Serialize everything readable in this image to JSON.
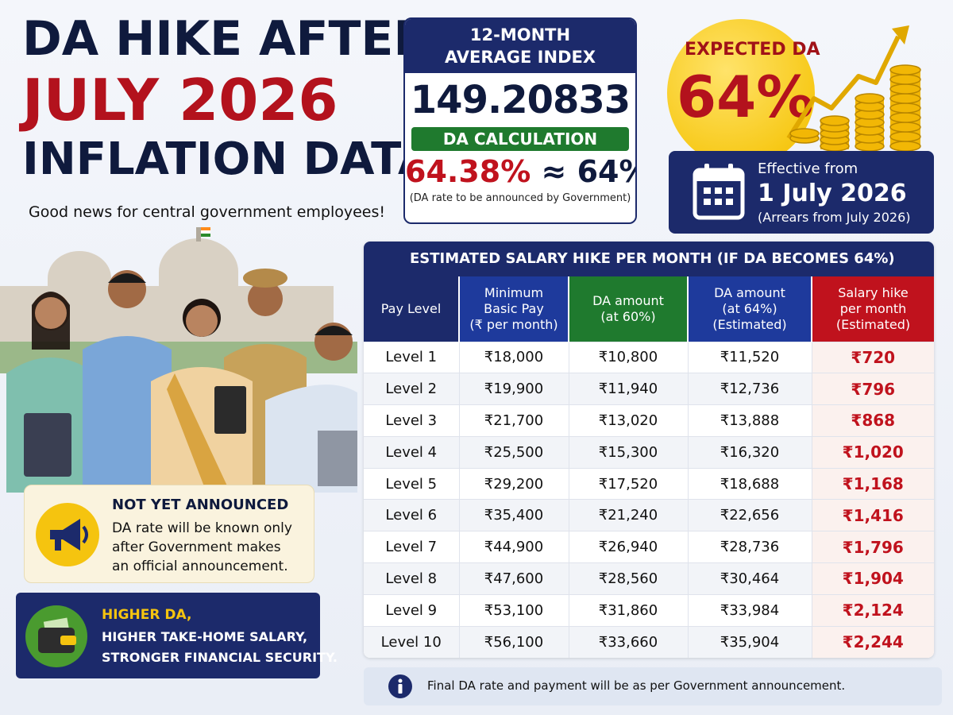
{
  "headline": {
    "line1": "DA HIKE AFTER",
    "line2": "JULY 2026",
    "line3": "INFLATION DATA"
  },
  "subtitle": "Good news for central government employees!",
  "index_card": {
    "heading_line1": "12-MONTH",
    "heading_line2": "AVERAGE INDEX",
    "value": "149.20833",
    "calc_label": "DA CALCULATION",
    "calc_exact": "64.38%",
    "calc_approx": "≈ 64%",
    "note": "(DA rate to be announced by Government)"
  },
  "expected": {
    "label": "EXPECTED DA",
    "value": "64%"
  },
  "effective": {
    "label": "Effective from",
    "date": "1 July 2026",
    "arrears": "(Arrears from July 2026)"
  },
  "notice": {
    "title": "NOT YET ANNOUNCED",
    "line1": "DA rate will be known only",
    "line2": "after Government makes",
    "line3": "an official announcement."
  },
  "benefit": {
    "line1": "HIGHER DA,",
    "line2": "HIGHER TAKE-HOME SALARY,",
    "line3": "STRONGER FINANCIAL SECURITY."
  },
  "table": {
    "title": "ESTIMATED SALARY HIKE PER MONTH (IF DA BECOMES 64%)",
    "headers": [
      {
        "l1": "Pay Level",
        "l2": "",
        "l3": ""
      },
      {
        "l1": "Minimum",
        "l2": "Basic Pay",
        "l3": "(₹ per month)"
      },
      {
        "l1": "DA amount",
        "l2": "(at 60%)",
        "l3": ""
      },
      {
        "l1": "DA amount",
        "l2": "(at 64%)",
        "l3": "(Estimated)"
      },
      {
        "l1": "Salary hike",
        "l2": "per month",
        "l3": "(Estimated)"
      }
    ],
    "rows": [
      [
        "Level 1",
        "₹18,000",
        "₹10,800",
        "₹11,520",
        "₹720"
      ],
      [
        "Level 2",
        "₹19,900",
        "₹11,940",
        "₹12,736",
        "₹796"
      ],
      [
        "Level 3",
        "₹21,700",
        "₹13,020",
        "₹13,888",
        "₹868"
      ],
      [
        "Level 4",
        "₹25,500",
        "₹15,300",
        "₹16,320",
        "₹1,020"
      ],
      [
        "Level 5",
        "₹29,200",
        "₹17,520",
        "₹18,688",
        "₹1,168"
      ],
      [
        "Level 6",
        "₹35,400",
        "₹21,240",
        "₹22,656",
        "₹1,416"
      ],
      [
        "Level 7",
        "₹44,900",
        "₹26,940",
        "₹28,736",
        "₹1,796"
      ],
      [
        "Level 8",
        "₹47,600",
        "₹28,560",
        "₹30,464",
        "₹1,904"
      ],
      [
        "Level 9",
        "₹53,100",
        "₹31,860",
        "₹33,984",
        "₹2,124"
      ],
      [
        "Level 10",
        "₹56,100",
        "₹33,660",
        "₹35,904",
        "₹2,244"
      ]
    ]
  },
  "footnote": "Final DA rate and payment will be as per Government announcement.",
  "colors": {
    "navy": "#1c2a6b",
    "red": "#c0121d",
    "green": "#1f7a2e",
    "blue": "#1e3a9c",
    "gold": "#f5c40f"
  },
  "icons": [
    "calendar-icon",
    "megaphone-icon",
    "wallet-icon",
    "info-icon",
    "coins-icon",
    "trend-arrow-icon"
  ]
}
